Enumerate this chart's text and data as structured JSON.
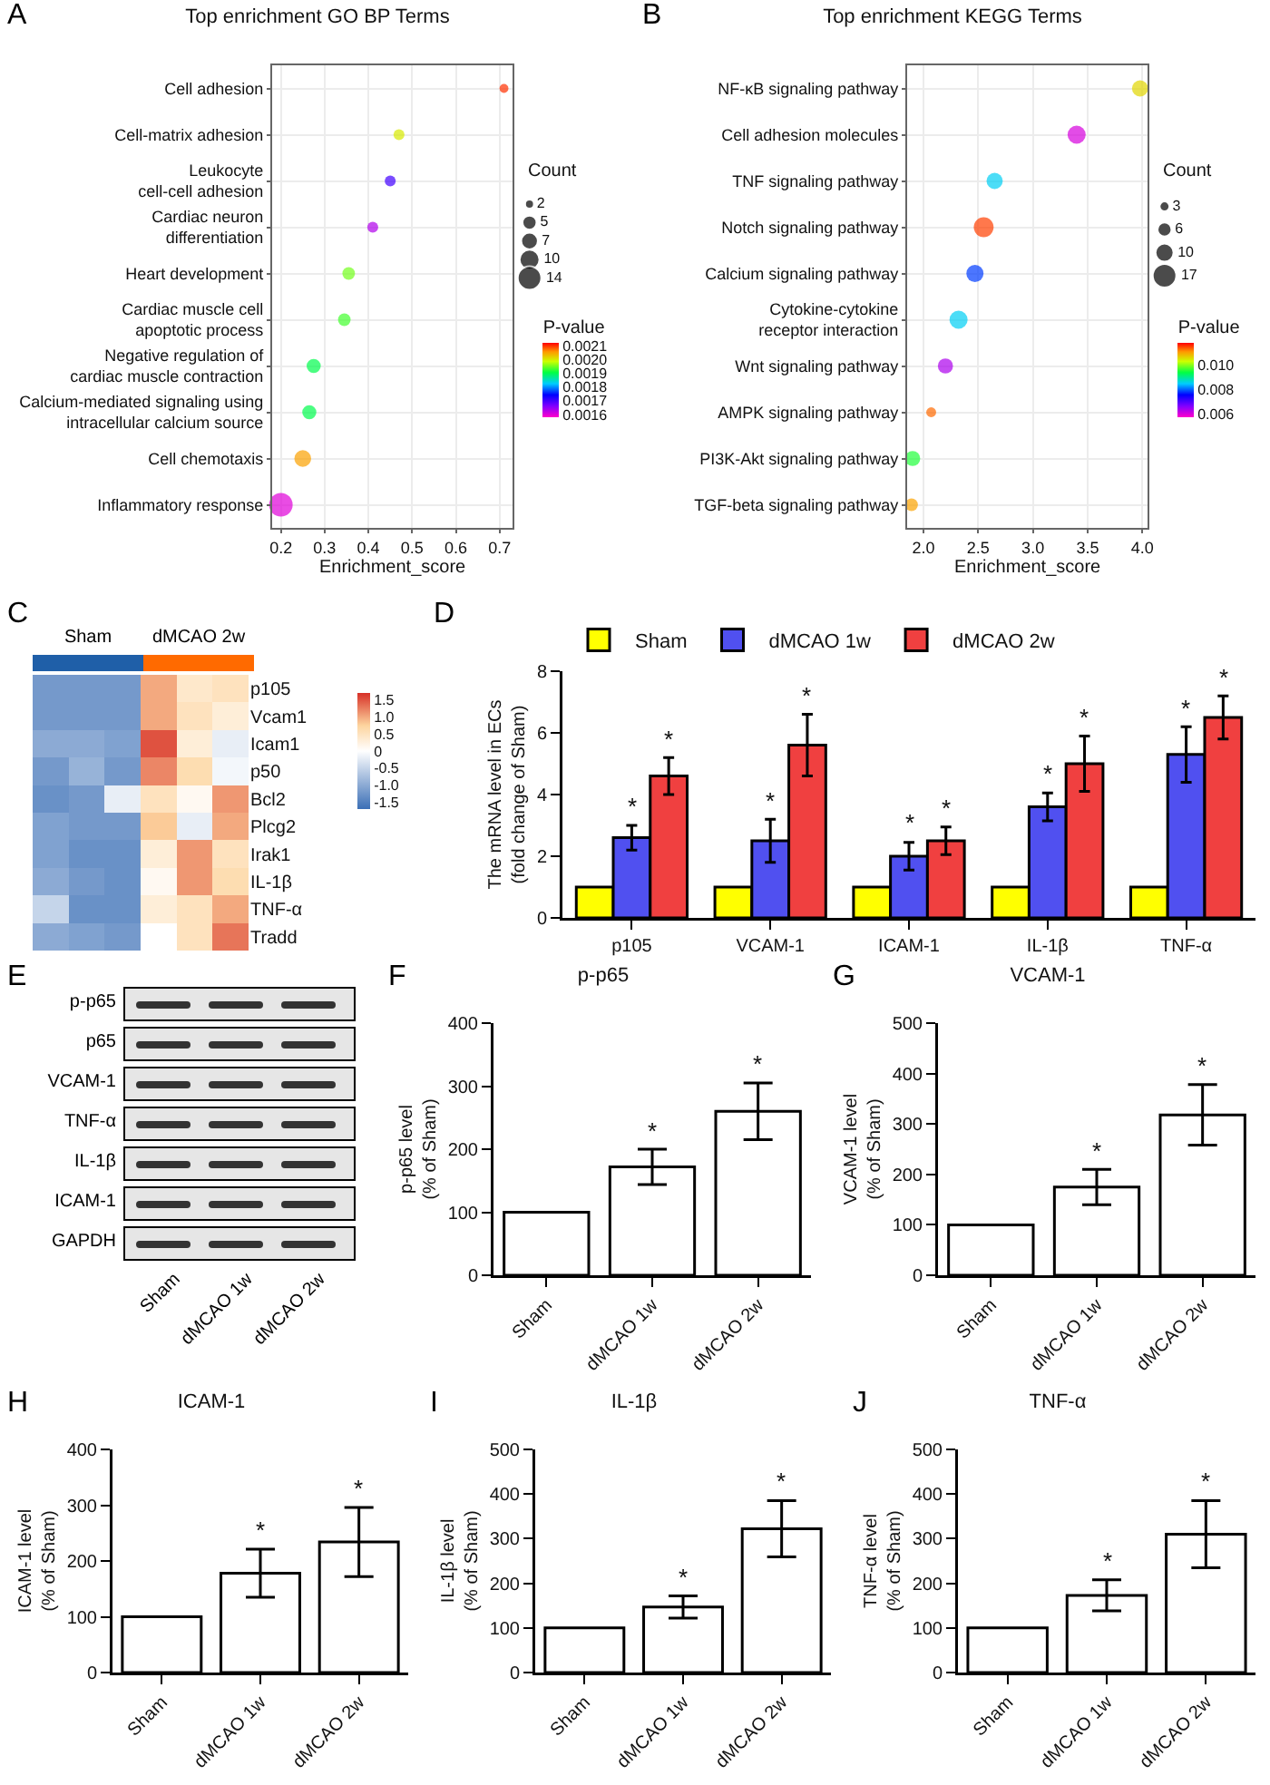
{
  "chart_data": [
    {
      "type": "bubble",
      "title": "Top enrichment GO BP Terms",
      "xlabel": "Enrichment_score",
      "orientation": "horizontal",
      "grid": true,
      "annotations": [
        "A"
      ],
      "categories": [
        "Cell adhesion",
        "Cell-matrix adhesion",
        "Leukocyte cell-cell adhesion",
        "Cardiac neuron differentiation",
        "Heart development",
        "Cardiac muscle cell apoptotic process",
        "Negative regulation of cardiac muscle contraction",
        "Calcium-mediated signaling using intracellular calcium source",
        "Cell chemotaxis",
        "Inflammatory response"
      ],
      "values": [
        0.71,
        0.47,
        0.45,
        0.41,
        0.355,
        0.345,
        0.275,
        0.265,
        0.25,
        0.2
      ],
      "sizes": [
        2,
        3,
        3,
        3,
        4,
        4,
        5,
        5,
        7,
        14
      ],
      "cvalues": [
        0.0021,
        0.002,
        0.0017,
        0.00163,
        0.00195,
        0.00193,
        0.0019,
        0.0019,
        0.00205,
        0.0016
      ],
      "xlim": [
        0.18,
        0.73
      ],
      "xticks": [
        0.2,
        0.3,
        0.4,
        0.5,
        0.6,
        0.7
      ],
      "legend_title": "Count",
      "size_legend": [
        2,
        5,
        7,
        10,
        14
      ],
      "clabel": "P-value",
      "clim": [
        0.00158,
        0.00212
      ],
      "cticks": [
        0.0016,
        0.0017,
        0.0018,
        0.0019,
        {
          "value": 0.002,
          "label": "0.0020"
        },
        0.0021
      ]
    },
    {
      "type": "bubble",
      "title": "Top enrichment KEGG Terms",
      "xlabel": "Enrichment_score",
      "orientation": "horizontal",
      "grid": true,
      "annotations": [
        "B"
      ],
      "categories": [
        "NF-κB signaling pathway",
        "Cell adhesion molecules",
        "TNF signaling pathway",
        "Notch signaling pathway",
        "Calcium signaling pathway",
        "Cytokine-cytokine receptor interaction",
        "Wnt signaling pathway",
        "AMPK signaling pathway",
        "PI3K-Akt signaling pathway",
        "TGF-beta signaling pathway"
      ],
      "values": [
        3.98,
        3.4,
        2.65,
        2.55,
        2.47,
        2.32,
        2.2,
        2.07,
        1.9,
        1.89
      ],
      "sizes": [
        8,
        10,
        8,
        12,
        9,
        10,
        7,
        3,
        7,
        5
      ],
      "cvalues": [
        0.0106,
        0.006,
        0.0085,
        0.0115,
        0.0078,
        0.0085,
        0.0063,
        0.0113,
        0.0095,
        0.011
      ],
      "xlim": [
        1.85,
        4.05
      ],
      "xticks": [
        {
          "value": 2,
          "label": "2.0"
        },
        2.5,
        {
          "value": 3,
          "label": "3.0"
        },
        3.5,
        {
          "value": 4,
          "label": "4.0"
        }
      ],
      "legend_title": "Count",
      "size_legend": [
        3,
        6,
        10,
        17
      ],
      "clabel": "P-value",
      "clim": [
        0.0057,
        0.0118
      ],
      "cticks": [
        0.006,
        0.008,
        {
          "value": 0.01,
          "label": "0.010"
        }
      ]
    },
    {
      "type": "heatmap",
      "annotations": [
        "C",
        "Sham",
        "dMCAO 2w"
      ],
      "tick_labels": "y",
      "categories": [
        null,
        null,
        null,
        null,
        null,
        null
      ],
      "y_categories": [
        "p105",
        "Vcam1",
        "Icam1",
        "p50",
        "Bcl2",
        "Plcg2",
        "Irak1",
        "IL-1β",
        "TNF-α",
        "Tradd"
      ],
      "cells": [
        [
          -1.2,
          -1.2,
          -1.2,
          1.0,
          0.4,
          0.5
        ],
        [
          -1.2,
          -1.2,
          -1.2,
          1.0,
          0.5,
          0.3
        ],
        [
          -1.0,
          -1.0,
          -1.1,
          1.5,
          0.3,
          -0.2
        ],
        [
          -1.2,
          -0.9,
          -1.2,
          1.2,
          0.6,
          -0.1
        ],
        [
          -1.3,
          -1.2,
          -0.2,
          0.5,
          0.1,
          1.1
        ],
        [
          -1.1,
          -1.2,
          -1.2,
          0.8,
          -0.2,
          1.0
        ],
        [
          -1.1,
          -1.3,
          -1.3,
          0.3,
          1.1,
          0.5
        ],
        [
          -1.0,
          -1.2,
          -1.3,
          0.1,
          1.1,
          0.6
        ],
        [
          -0.5,
          -1.3,
          -1.3,
          0.3,
          0.5,
          1.0
        ],
        [
          -1.0,
          -1.1,
          -1.2,
          0.0,
          0.5,
          1.3
        ]
      ],
      "clim": [
        -1.7,
        1.7
      ],
      "cticks": [
        {
          "value": 1.5,
          "label": "1.5"
        },
        {
          "value": 1,
          "label": "1.0"
        },
        0.5,
        0,
        -0.5,
        {
          "value": -1,
          "label": "-1.0"
        },
        -1.5
      ]
    },
    {
      "type": "bar",
      "annotations": [
        "D",
        "*",
        "*",
        "*",
        "*",
        "*",
        "*",
        "*",
        "*",
        "*",
        "*"
      ],
      "ylabel": "The mRNA level in ECs\n(fold change of Sham)",
      "legend": "top",
      "ylim": [
        0,
        8
      ],
      "yticks": [
        0,
        2,
        4,
        6,
        8
      ],
      "categories": [
        "p105",
        "VCAM-1",
        "ICAM-1",
        "IL-1β",
        "TNF-α"
      ],
      "series": [
        {
          "name": "Sham",
          "color": "#ffff00",
          "values": [
            1,
            1,
            1,
            1,
            1
          ]
        },
        {
          "name": "dMCAO 1w",
          "color": "#5050f0",
          "values": [
            2.6,
            2.5,
            2.0,
            3.6,
            5.3
          ],
          "errors": [
            0.4,
            0.7,
            0.45,
            0.45,
            0.9
          ]
        },
        {
          "name": "dMCAO 2w",
          "color": "#f04040",
          "values": [
            4.6,
            5.6,
            2.5,
            5.0,
            6.5
          ],
          "errors": [
            0.6,
            1.0,
            0.45,
            0.9,
            0.7
          ]
        }
      ]
    },
    {
      "type": "other",
      "annotations": [
        "E"
      ],
      "y_categories": [
        "p-p65",
        "p65",
        "VCAM-1",
        "TNF-α",
        "IL-1β",
        "ICAM-1",
        "GAPDH"
      ],
      "categories": [
        "Sham",
        "dMCAO 1w",
        "dMCAO 2w"
      ]
    },
    {
      "type": "bar",
      "title": "p-p65",
      "ylabel": "p-p65 level\n(% of Sham)",
      "color": "#ffffff",
      "annotations": [
        "F",
        "*",
        "*"
      ],
      "categories": [
        "Sham",
        "dMCAO 1w",
        "dMCAO 2w"
      ],
      "values": [
        100,
        172,
        260
      ],
      "errors": [
        null,
        28,
        45
      ],
      "ylim": [
        0,
        400
      ],
      "yticks": [
        0,
        100,
        200,
        300,
        400
      ]
    },
    {
      "type": "bar",
      "title": "VCAM-1",
      "ylabel": "VCAM-1 level\n(% of Sham)",
      "color": "#ffffff",
      "annotations": [
        "G",
        "*",
        "*"
      ],
      "categories": [
        "Sham",
        "dMCAO 1w",
        "dMCAO 2w"
      ],
      "values": [
        100,
        175,
        318
      ],
      "errors": [
        null,
        35,
        60
      ],
      "ylim": [
        0,
        500
      ],
      "yticks": [
        0,
        100,
        200,
        300,
        400,
        500
      ]
    },
    {
      "type": "bar",
      "title": "ICAM-1",
      "ylabel": "ICAM-1 level\n(% of Sham)",
      "color": "#ffffff",
      "annotations": [
        "H",
        "*",
        "*"
      ],
      "categories": [
        "Sham",
        "dMCAO 1w",
        "dMCAO 2w"
      ],
      "values": [
        100,
        178,
        234
      ],
      "errors": [
        null,
        43,
        62
      ],
      "ylim": [
        0,
        400
      ],
      "yticks": [
        0,
        100,
        200,
        300,
        400
      ]
    },
    {
      "type": "bar",
      "title": "IL-1β",
      "ylabel": "IL-1β level\n(% of Sham)",
      "color": "#ffffff",
      "annotations": [
        "I",
        "*",
        "*"
      ],
      "categories": [
        "Sham",
        "dMCAO 1w",
        "dMCAO 2w"
      ],
      "values": [
        100,
        147,
        322
      ],
      "errors": [
        null,
        25,
        63
      ],
      "ylim": [
        0,
        500
      ],
      "yticks": [
        0,
        100,
        200,
        300,
        400,
        500
      ]
    },
    {
      "type": "bar",
      "title": "TNF-α",
      "ylabel": "TNF-α level\n(% of Sham)",
      "color": "#ffffff",
      "annotations": [
        "J",
        "*",
        "*"
      ],
      "categories": [
        "Sham",
        "dMCAO 1w",
        "dMCAO 2w"
      ],
      "values": [
        100,
        173,
        310
      ],
      "errors": [
        null,
        35,
        75
      ],
      "ylim": [
        0,
        500
      ],
      "yticks": [
        0,
        100,
        200,
        300,
        400,
        500
      ]
    }
  ]
}
